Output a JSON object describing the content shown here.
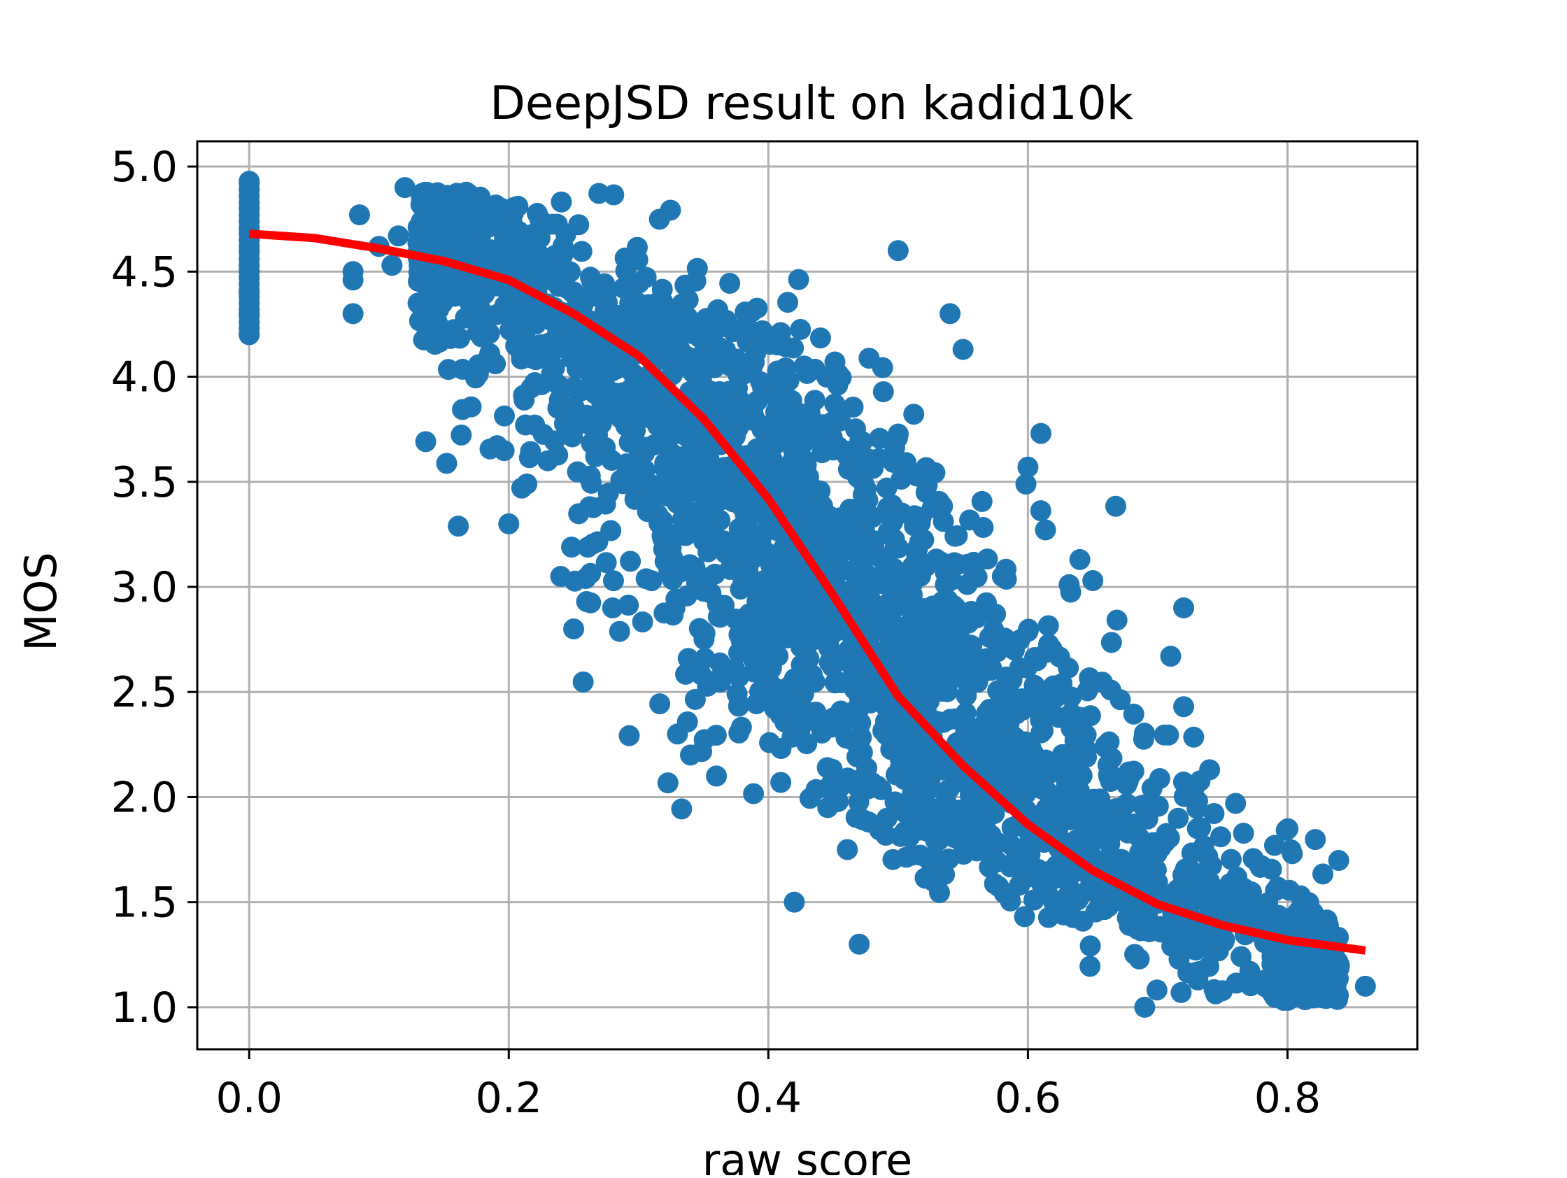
{
  "chart_data": {
    "type": "scatter",
    "title": "DeepJSD result on kadid10k",
    "xlabel": "raw score",
    "ylabel": "MOS",
    "xlim": [
      -0.04,
      0.9
    ],
    "ylim": [
      0.8,
      5.12
    ],
    "xticks": [
      0.0,
      0.2,
      0.4,
      0.6,
      0.8
    ],
    "yticks": [
      1.0,
      1.5,
      2.0,
      2.5,
      3.0,
      3.5,
      4.0,
      4.5,
      5.0
    ],
    "grid": true,
    "colors": {
      "points": "#1f77b4",
      "fit_curve": "#ff0000",
      "grid": "#b0b0b0",
      "frame": "#000000"
    },
    "series": [
      {
        "kind": "points",
        "x_range": [
          0.0,
          0.86
        ],
        "y_range": [
          1.0,
          4.93
        ],
        "note": "about 10k points; dense band running from top-left to bottom-right, plus a vertical column at raw score 0.0 from 4.2 to 4.93",
        "points": [
          [
            0.0,
            4.2
          ],
          [
            0.0,
            4.3
          ],
          [
            0.0,
            4.4
          ],
          [
            0.0,
            4.5
          ],
          [
            0.0,
            4.6
          ],
          [
            0.0,
            4.7
          ],
          [
            0.0,
            4.8
          ],
          [
            0.0,
            4.93
          ],
          [
            0.08,
            4.3
          ],
          [
            0.08,
            4.46
          ],
          [
            0.08,
            4.5
          ],
          [
            0.085,
            4.77
          ],
          [
            0.1,
            4.62
          ],
          [
            0.11,
            4.53
          ],
          [
            0.115,
            4.67
          ],
          [
            0.12,
            4.9
          ],
          [
            0.2,
            3.3
          ],
          [
            0.21,
            3.47
          ],
          [
            0.22,
            3.77
          ],
          [
            0.23,
            3.6
          ],
          [
            0.24,
            3.05
          ],
          [
            0.25,
            2.8
          ],
          [
            0.26,
            2.93
          ],
          [
            0.28,
            2.9
          ],
          [
            0.33,
            2.3
          ],
          [
            0.34,
            2.2
          ],
          [
            0.36,
            2.1
          ],
          [
            0.42,
            1.5
          ],
          [
            0.47,
            1.3
          ],
          [
            0.5,
            4.6
          ],
          [
            0.55,
            4.13
          ],
          [
            0.54,
            4.3
          ],
          [
            0.61,
            3.73
          ],
          [
            0.6,
            3.57
          ],
          [
            0.64,
            3.13
          ],
          [
            0.65,
            3.03
          ],
          [
            0.72,
            2.9
          ],
          [
            0.71,
            2.67
          ],
          [
            0.72,
            2.43
          ],
          [
            0.74,
            2.13
          ],
          [
            0.76,
            1.97
          ],
          [
            0.79,
            1.77
          ],
          [
            0.81,
            1.53
          ],
          [
            0.83,
            1.37
          ],
          [
            0.84,
            1.2
          ],
          [
            0.86,
            1.1
          ],
          [
            0.83,
            1.13
          ],
          [
            0.69,
            1.0
          ]
        ]
      },
      {
        "kind": "fit_curve",
        "x": [
          0.0,
          0.05,
          0.1,
          0.15,
          0.2,
          0.25,
          0.3,
          0.35,
          0.4,
          0.45,
          0.5,
          0.55,
          0.6,
          0.65,
          0.7,
          0.75,
          0.8,
          0.86
        ],
        "y": [
          4.68,
          4.66,
          4.61,
          4.55,
          4.46,
          4.3,
          4.1,
          3.8,
          3.42,
          2.96,
          2.48,
          2.15,
          1.87,
          1.65,
          1.49,
          1.39,
          1.32,
          1.27
        ]
      }
    ]
  }
}
